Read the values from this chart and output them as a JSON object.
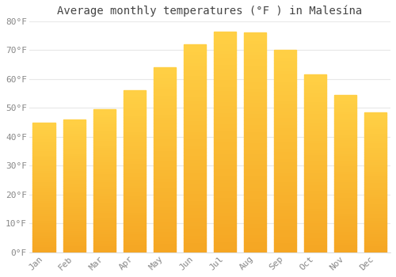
{
  "title": "Average monthly temperatures (°F ) in Malesína",
  "months": [
    "Jan",
    "Feb",
    "Mar",
    "Apr",
    "May",
    "Jun",
    "Jul",
    "Aug",
    "Sep",
    "Oct",
    "Nov",
    "Dec"
  ],
  "values": [
    45,
    46,
    49.5,
    56,
    64,
    72,
    76.5,
    76,
    70,
    61.5,
    54.5,
    48.5
  ],
  "bar_color_top": "#FFD045",
  "bar_color_bottom": "#F5A623",
  "background_color": "#FFFFFF",
  "grid_color": "#E8E8E8",
  "tick_color": "#888888",
  "title_color": "#444444",
  "ylim": [
    0,
    80
  ],
  "yticks": [
    0,
    10,
    20,
    30,
    40,
    50,
    60,
    70,
    80
  ],
  "ytick_labels": [
    "0°F",
    "10°F",
    "20°F",
    "30°F",
    "40°F",
    "50°F",
    "60°F",
    "70°F",
    "80°F"
  ],
  "title_fontsize": 10,
  "tick_fontsize": 8,
  "bar_width": 0.75
}
